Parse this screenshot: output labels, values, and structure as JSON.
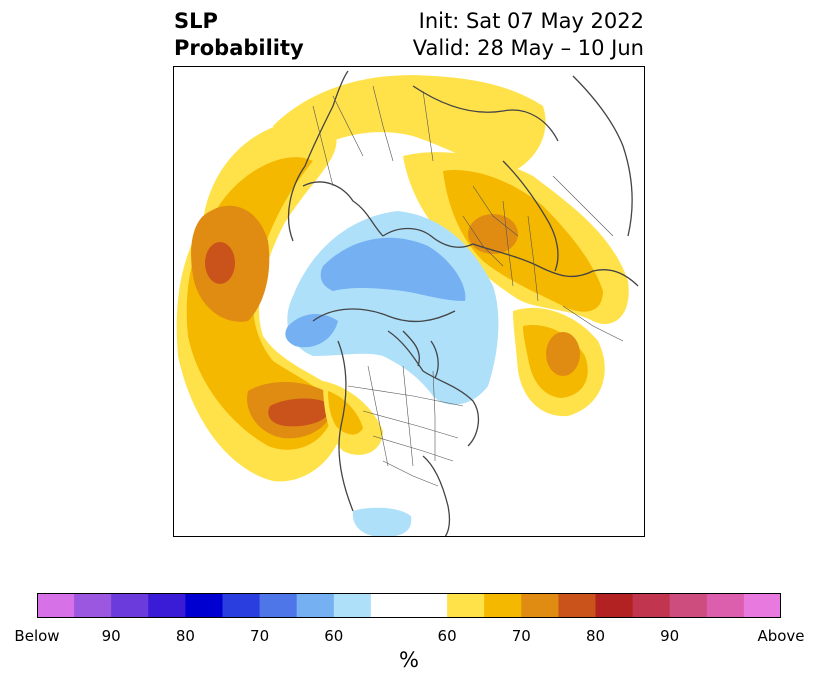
{
  "title": {
    "variable": "SLP",
    "kind": "Probability",
    "init": "Init: Sat 07 May 2022",
    "valid": "Valid: 28 May – 10 Jun"
  },
  "colorbar": {
    "unit": "%",
    "colors": [
      "#d671e8",
      "#9b57e0",
      "#6b3bdc",
      "#3a1bd6",
      "#0000d0",
      "#2a3ee0",
      "#4e76e8",
      "#74b0f2",
      "#aee0fa",
      "#ffffff",
      "#ffe24a",
      "#f5b800",
      "#e08c12",
      "#c9531a",
      "#b22222",
      "#c2354e",
      "#cc4d7e",
      "#dc5fae",
      "#e879df"
    ],
    "tick_labels": [
      "Below",
      "90",
      "80",
      "70",
      "60",
      "60",
      "70",
      "80",
      "90",
      "Above"
    ]
  },
  "map": {
    "projection": "polar-stereographic-north",
    "below_colors": [
      "#aee0fa",
      "#74b0f2"
    ],
    "above_colors": [
      "#ffe24a",
      "#f5b800",
      "#e08c12",
      "#c9531a"
    ],
    "coastline_color": "#444444"
  }
}
